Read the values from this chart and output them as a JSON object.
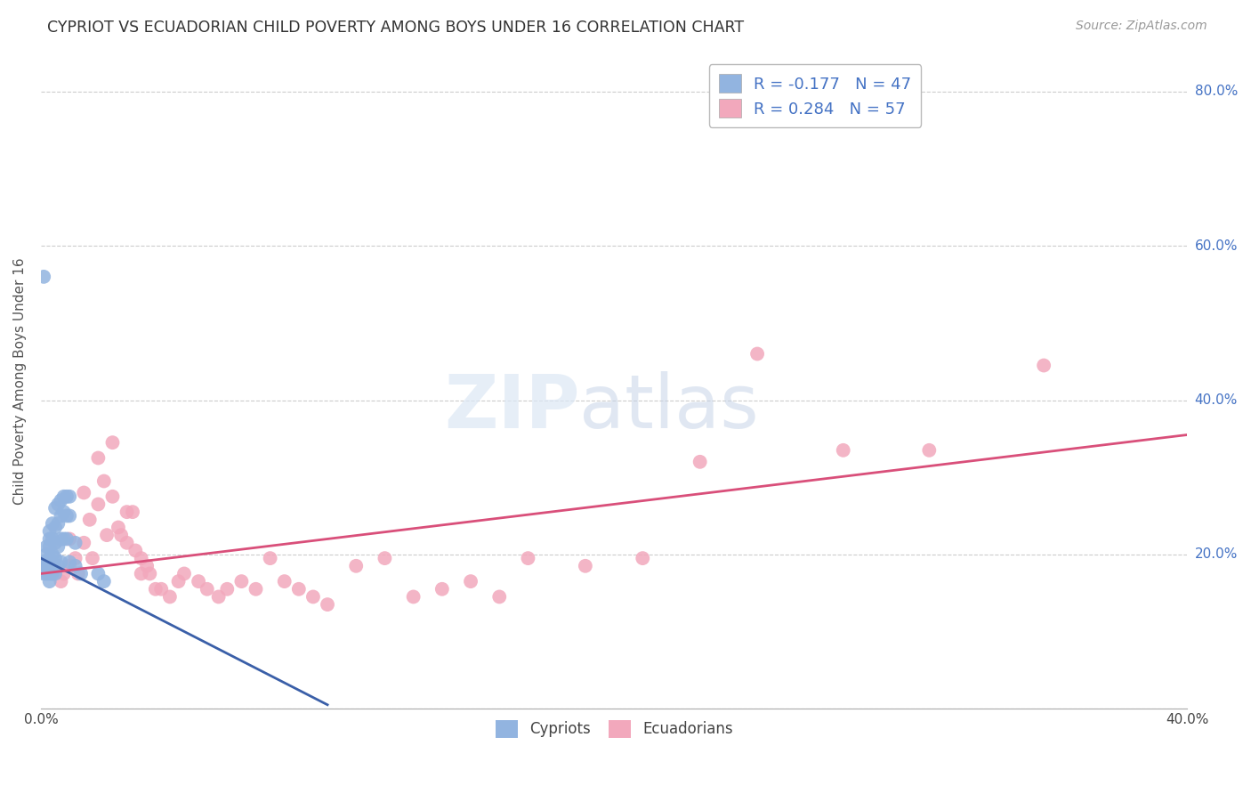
{
  "title": "CYPRIOT VS ECUADORIAN CHILD POVERTY AMONG BOYS UNDER 16 CORRELATION CHART",
  "source": "Source: ZipAtlas.com",
  "ylabel": "Child Poverty Among Boys Under 16",
  "xlim": [
    0.0,
    0.4
  ],
  "ylim": [
    0.0,
    0.85
  ],
  "xticks": [
    0.0,
    0.05,
    0.1,
    0.15,
    0.2,
    0.25,
    0.3,
    0.35,
    0.4
  ],
  "yticks": [
    0.0,
    0.2,
    0.4,
    0.6,
    0.8
  ],
  "yticklabels": [
    "",
    "20.0%",
    "40.0%",
    "60.0%",
    "80.0%"
  ],
  "grid_color": "#cccccc",
  "background_color": "#ffffff",
  "cypriot_color": "#92b4e0",
  "ecuadorian_color": "#f2a8bc",
  "cypriot_line_color": "#3a5fa8",
  "ecuadorian_line_color": "#d94f7a",
  "legend_R_cypriot": "-0.177",
  "legend_N_cypriot": "47",
  "legend_R_ecuadorian": "0.284",
  "legend_N_ecuadorian": "57",
  "cypriot_trend_x": [
    0.0,
    0.1
  ],
  "cypriot_trend_y": [
    0.195,
    0.005
  ],
  "ecuadorian_trend_x": [
    0.0,
    0.4
  ],
  "ecuadorian_trend_y": [
    0.175,
    0.355
  ],
  "cypriot_scatter_x": [
    0.001,
    0.001,
    0.001,
    0.002,
    0.002,
    0.002,
    0.002,
    0.003,
    0.003,
    0.003,
    0.003,
    0.003,
    0.003,
    0.003,
    0.004,
    0.004,
    0.004,
    0.004,
    0.004,
    0.005,
    0.005,
    0.005,
    0.005,
    0.005,
    0.006,
    0.006,
    0.006,
    0.006,
    0.007,
    0.007,
    0.007,
    0.007,
    0.008,
    0.008,
    0.008,
    0.009,
    0.009,
    0.009,
    0.01,
    0.01,
    0.01,
    0.012,
    0.012,
    0.014,
    0.02,
    0.022,
    0.001
  ],
  "cypriot_scatter_y": [
    0.19,
    0.18,
    0.175,
    0.21,
    0.2,
    0.19,
    0.175,
    0.23,
    0.22,
    0.21,
    0.195,
    0.185,
    0.175,
    0.165,
    0.24,
    0.22,
    0.2,
    0.185,
    0.175,
    0.26,
    0.235,
    0.215,
    0.195,
    0.175,
    0.265,
    0.24,
    0.21,
    0.185,
    0.27,
    0.25,
    0.22,
    0.19,
    0.275,
    0.255,
    0.22,
    0.275,
    0.25,
    0.22,
    0.275,
    0.25,
    0.19,
    0.215,
    0.185,
    0.175,
    0.175,
    0.165,
    0.56
  ],
  "ecuadorian_scatter_x": [
    0.005,
    0.007,
    0.008,
    0.01,
    0.01,
    0.012,
    0.013,
    0.015,
    0.015,
    0.017,
    0.018,
    0.02,
    0.02,
    0.022,
    0.023,
    0.025,
    0.025,
    0.027,
    0.028,
    0.03,
    0.03,
    0.032,
    0.033,
    0.035,
    0.035,
    0.037,
    0.038,
    0.04,
    0.042,
    0.045,
    0.048,
    0.05,
    0.055,
    0.058,
    0.062,
    0.065,
    0.07,
    0.075,
    0.08,
    0.085,
    0.09,
    0.095,
    0.1,
    0.11,
    0.12,
    0.13,
    0.14,
    0.15,
    0.16,
    0.17,
    0.19,
    0.21,
    0.23,
    0.25,
    0.28,
    0.31,
    0.35
  ],
  "ecuadorian_scatter_y": [
    0.18,
    0.165,
    0.175,
    0.22,
    0.185,
    0.195,
    0.175,
    0.28,
    0.215,
    0.245,
    0.195,
    0.325,
    0.265,
    0.295,
    0.225,
    0.345,
    0.275,
    0.235,
    0.225,
    0.255,
    0.215,
    0.255,
    0.205,
    0.195,
    0.175,
    0.185,
    0.175,
    0.155,
    0.155,
    0.145,
    0.165,
    0.175,
    0.165,
    0.155,
    0.145,
    0.155,
    0.165,
    0.155,
    0.195,
    0.165,
    0.155,
    0.145,
    0.135,
    0.185,
    0.195,
    0.145,
    0.155,
    0.165,
    0.145,
    0.195,
    0.185,
    0.195,
    0.32,
    0.46,
    0.335,
    0.335,
    0.445
  ]
}
